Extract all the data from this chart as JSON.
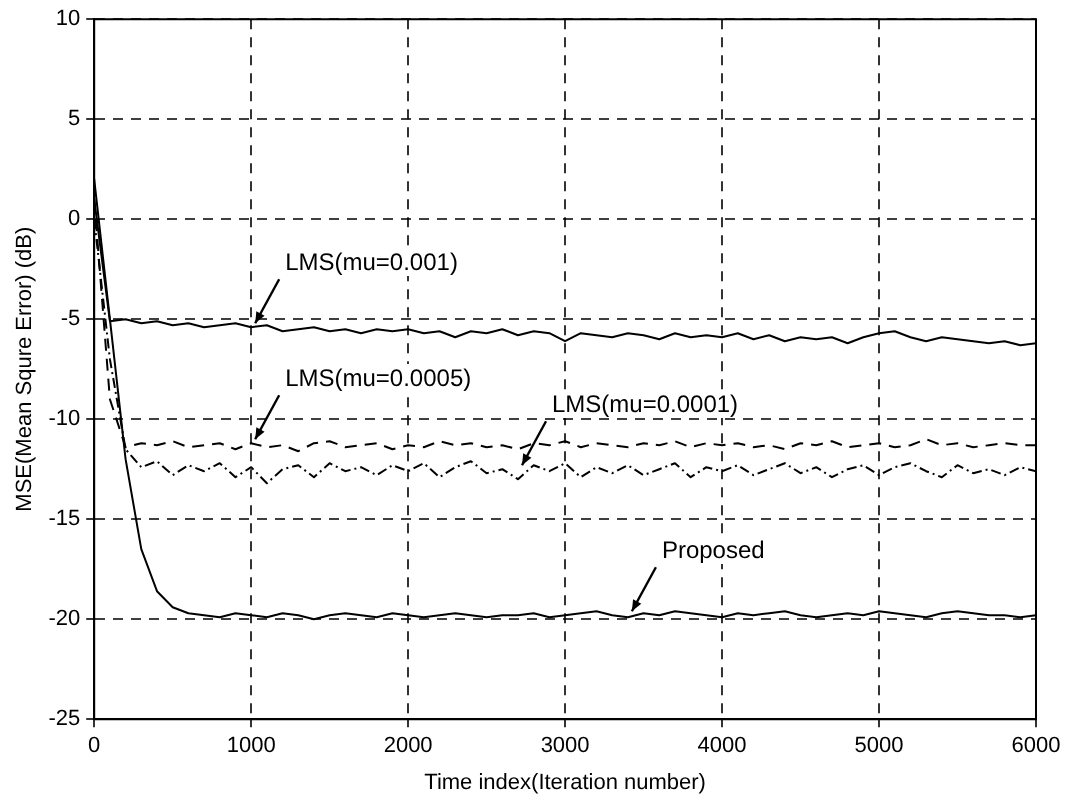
{
  "chart_data": {
    "type": "line",
    "xlabel": "Time index(Iteration number)",
    "ylabel": "MSE(Mean Squre Error) (dB)",
    "x": [
      0,
      100,
      200,
      300,
      400,
      500,
      600,
      700,
      800,
      900,
      1000,
      1100,
      1200,
      1300,
      1400,
      1500,
      1600,
      1700,
      1800,
      1900,
      2000,
      2100,
      2200,
      2300,
      2400,
      2500,
      2600,
      2700,
      2800,
      2900,
      3000,
      3100,
      3200,
      3300,
      3400,
      3500,
      3600,
      3700,
      3800,
      3900,
      4000,
      4100,
      4200,
      4300,
      4400,
      4500,
      4600,
      4700,
      4800,
      4900,
      5000,
      5100,
      5200,
      5300,
      5400,
      5500,
      5600,
      5700,
      5800,
      5900,
      6000
    ],
    "xlim": [
      0,
      6000
    ],
    "xticks": [
      0,
      1000,
      2000,
      3000,
      4000,
      5000,
      6000
    ],
    "ylim": [
      -25,
      10
    ],
    "yticks": [
      -25,
      -20,
      -15,
      -10,
      -5,
      0,
      5,
      10
    ],
    "grid": true,
    "legend": false,
    "marker": "none",
    "series": [
      {
        "color": "#000000",
        "line_style": "solid",
        "values": [
          1,
          -5.1,
          -5.0,
          -5.2,
          -5.1,
          -5.3,
          -5.2,
          -5.4,
          -5.3,
          -5.2,
          -5.4,
          -5.3,
          -5.6,
          -5.5,
          -5.4,
          -5.6,
          -5.5,
          -5.7,
          -5.5,
          -5.6,
          -5.5,
          -5.7,
          -5.6,
          -5.9,
          -5.6,
          -5.7,
          -5.5,
          -5.8,
          -5.6,
          -5.7,
          -6.1,
          -5.7,
          -5.8,
          -5.9,
          -5.7,
          -5.8,
          -6.0,
          -5.7,
          -5.9,
          -5.8,
          -5.9,
          -5.7,
          -6.0,
          -5.8,
          -6.1,
          -5.9,
          -6.0,
          -5.9,
          -6.2,
          -5.9,
          -5.7,
          -5.6,
          -5.9,
          -6.1,
          -5.9,
          -6.0,
          -6.1,
          -6.2,
          -6.1,
          -6.3,
          -6.2
        ]
      },
      {
        "color": "#000000",
        "line_style": "dashed",
        "values": [
          1,
          -9,
          -11.4,
          -11.2,
          -11.3,
          -11.1,
          -11.4,
          -11.3,
          -11.2,
          -11.5,
          -11.2,
          -11.4,
          -11.3,
          -11.6,
          -11.2,
          -11.1,
          -11.4,
          -11.3,
          -11.2,
          -11.5,
          -11.3,
          -11.4,
          -11.1,
          -11.3,
          -11.2,
          -11.4,
          -11.3,
          -11.5,
          -11.2,
          -11.3,
          -11.1,
          -11.4,
          -11.2,
          -11.3,
          -11.4,
          -11.2,
          -11.3,
          -11.1,
          -11.4,
          -11.2,
          -11.3,
          -11.2,
          -11.4,
          -11.3,
          -11.5,
          -11.2,
          -11.3,
          -11.1,
          -11.4,
          -11.3,
          -11.2,
          -11.4,
          -11.3,
          -11.0,
          -11.3,
          -11.2,
          -11.4,
          -11.3,
          -11.2,
          -11.3,
          -11.3
        ]
      },
      {
        "color": "#000000",
        "line_style": "dotted",
        "values": [
          0,
          -7,
          -11.5,
          -12.4,
          -12.1,
          -12.8,
          -12.3,
          -12.6,
          -12.2,
          -12.9,
          -12.4,
          -13.2,
          -12.5,
          -12.3,
          -12.9,
          -12.2,
          -12.6,
          -12.4,
          -12.8,
          -12.3,
          -12.6,
          -12.2,
          -12.9,
          -12.4,
          -12.1,
          -12.7,
          -12.5,
          -13.0,
          -12.3,
          -12.6,
          -12.2,
          -12.9,
          -12.4,
          -12.7,
          -12.3,
          -12.8,
          -12.5,
          -12.2,
          -12.9,
          -12.4,
          -12.6,
          -12.3,
          -12.8,
          -12.5,
          -12.2,
          -12.7,
          -12.4,
          -12.9,
          -12.5,
          -12.3,
          -12.8,
          -12.4,
          -12.2,
          -12.6,
          -12.9,
          -12.3,
          -12.7,
          -12.5,
          -12.8,
          -12.4,
          -12.6
        ]
      },
      {
        "color": "#000000",
        "line_style": "solid",
        "values": [
          2,
          -5,
          -12,
          -16.5,
          -18.6,
          -19.4,
          -19.7,
          -19.8,
          -19.9,
          -19.7,
          -19.8,
          -19.9,
          -19.7,
          -19.8,
          -20.0,
          -19.8,
          -19.7,
          -19.8,
          -19.9,
          -19.7,
          -19.8,
          -19.9,
          -19.8,
          -19.7,
          -19.8,
          -19.9,
          -19.8,
          -19.8,
          -19.7,
          -19.9,
          -19.8,
          -19.7,
          -19.6,
          -19.8,
          -19.9,
          -19.7,
          -19.8,
          -19.6,
          -19.7,
          -19.8,
          -19.9,
          -19.7,
          -19.8,
          -19.7,
          -19.6,
          -19.8,
          -19.9,
          -19.8,
          -19.7,
          -19.8,
          -19.6,
          -19.7,
          -19.8,
          -19.9,
          -19.7,
          -19.6,
          -19.7,
          -19.8,
          -19.8,
          -19.9,
          -19.8
        ]
      }
    ],
    "annotations": [
      {
        "text": "LMS(mu=0.001)",
        "x": 1000,
        "y": -5.4
      },
      {
        "text": "LMS(mu=0.0005)",
        "x": 1000,
        "y": -11.2
      },
      {
        "text": "LMS(mu=0.0001)",
        "x": 2700,
        "y": -12.5
      },
      {
        "text": "Proposed",
        "x": 3400,
        "y": -19.8
      }
    ]
  }
}
